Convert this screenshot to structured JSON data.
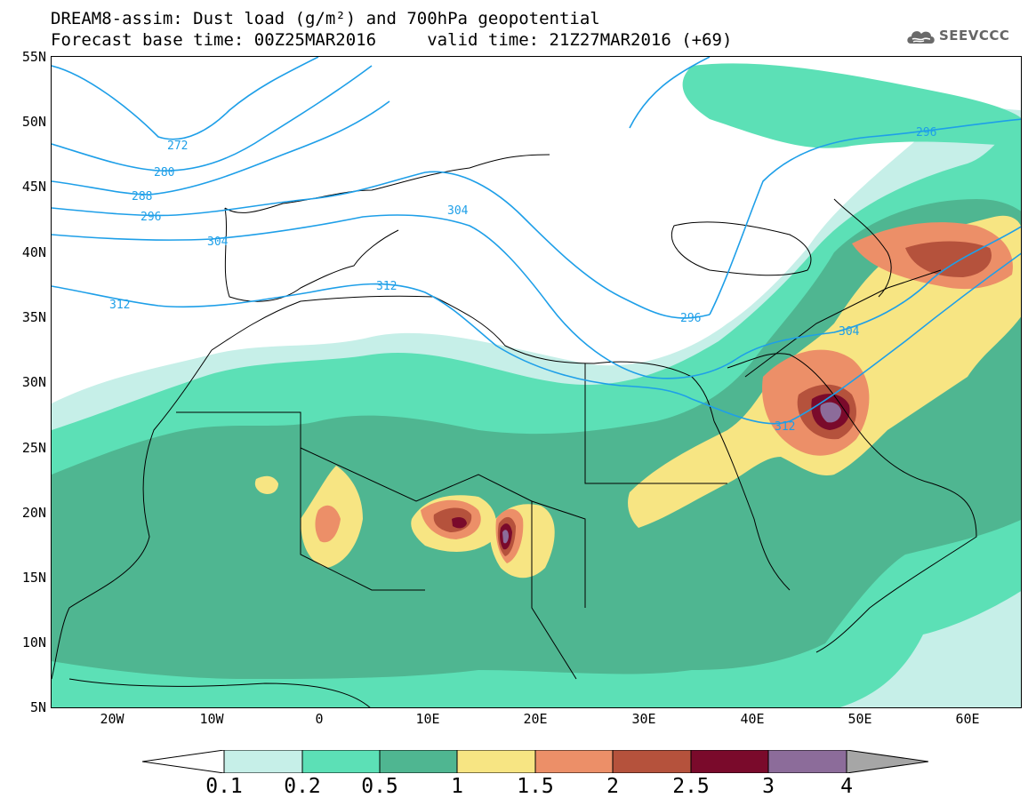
{
  "title": {
    "line1": "DREAM8-assim: Dust load (g/m²) and 700hPa geopotential",
    "line2": "Forecast base time: 00Z25MAR2016     valid time: 21Z27MAR2016 (+69)"
  },
  "logo": {
    "text": "SEEVCCC",
    "icon": "cloud-icon"
  },
  "axes": {
    "latitude_labels": [
      "55N",
      "50N",
      "45N",
      "40N",
      "35N",
      "30N",
      "25N",
      "20N",
      "15N",
      "10N",
      "5N"
    ],
    "longitude_labels": [
      "20W",
      "10W",
      "0",
      "10E",
      "20E",
      "30E",
      "40E",
      "50E",
      "60E"
    ]
  },
  "contours": {
    "labels": [
      "272",
      "280",
      "288",
      "296",
      "304",
      "312",
      "304",
      "312",
      "296",
      "296",
      "304",
      "312"
    ]
  },
  "colorbar": {
    "levels": [
      "0.1",
      "0.2",
      "0.5",
      "1",
      "1.5",
      "2",
      "2.5",
      "3",
      "4"
    ],
    "colors": [
      "#c6efe8",
      "#5ce0b6",
      "#4fb691",
      "#f7e583",
      "#ec8f68",
      "#b5523c",
      "#7a0a2b",
      "#8c6c9a",
      "#a6a6a6"
    ]
  },
  "map": {
    "contour_color": "#1e9fe8",
    "background_color": "#ffffff"
  }
}
